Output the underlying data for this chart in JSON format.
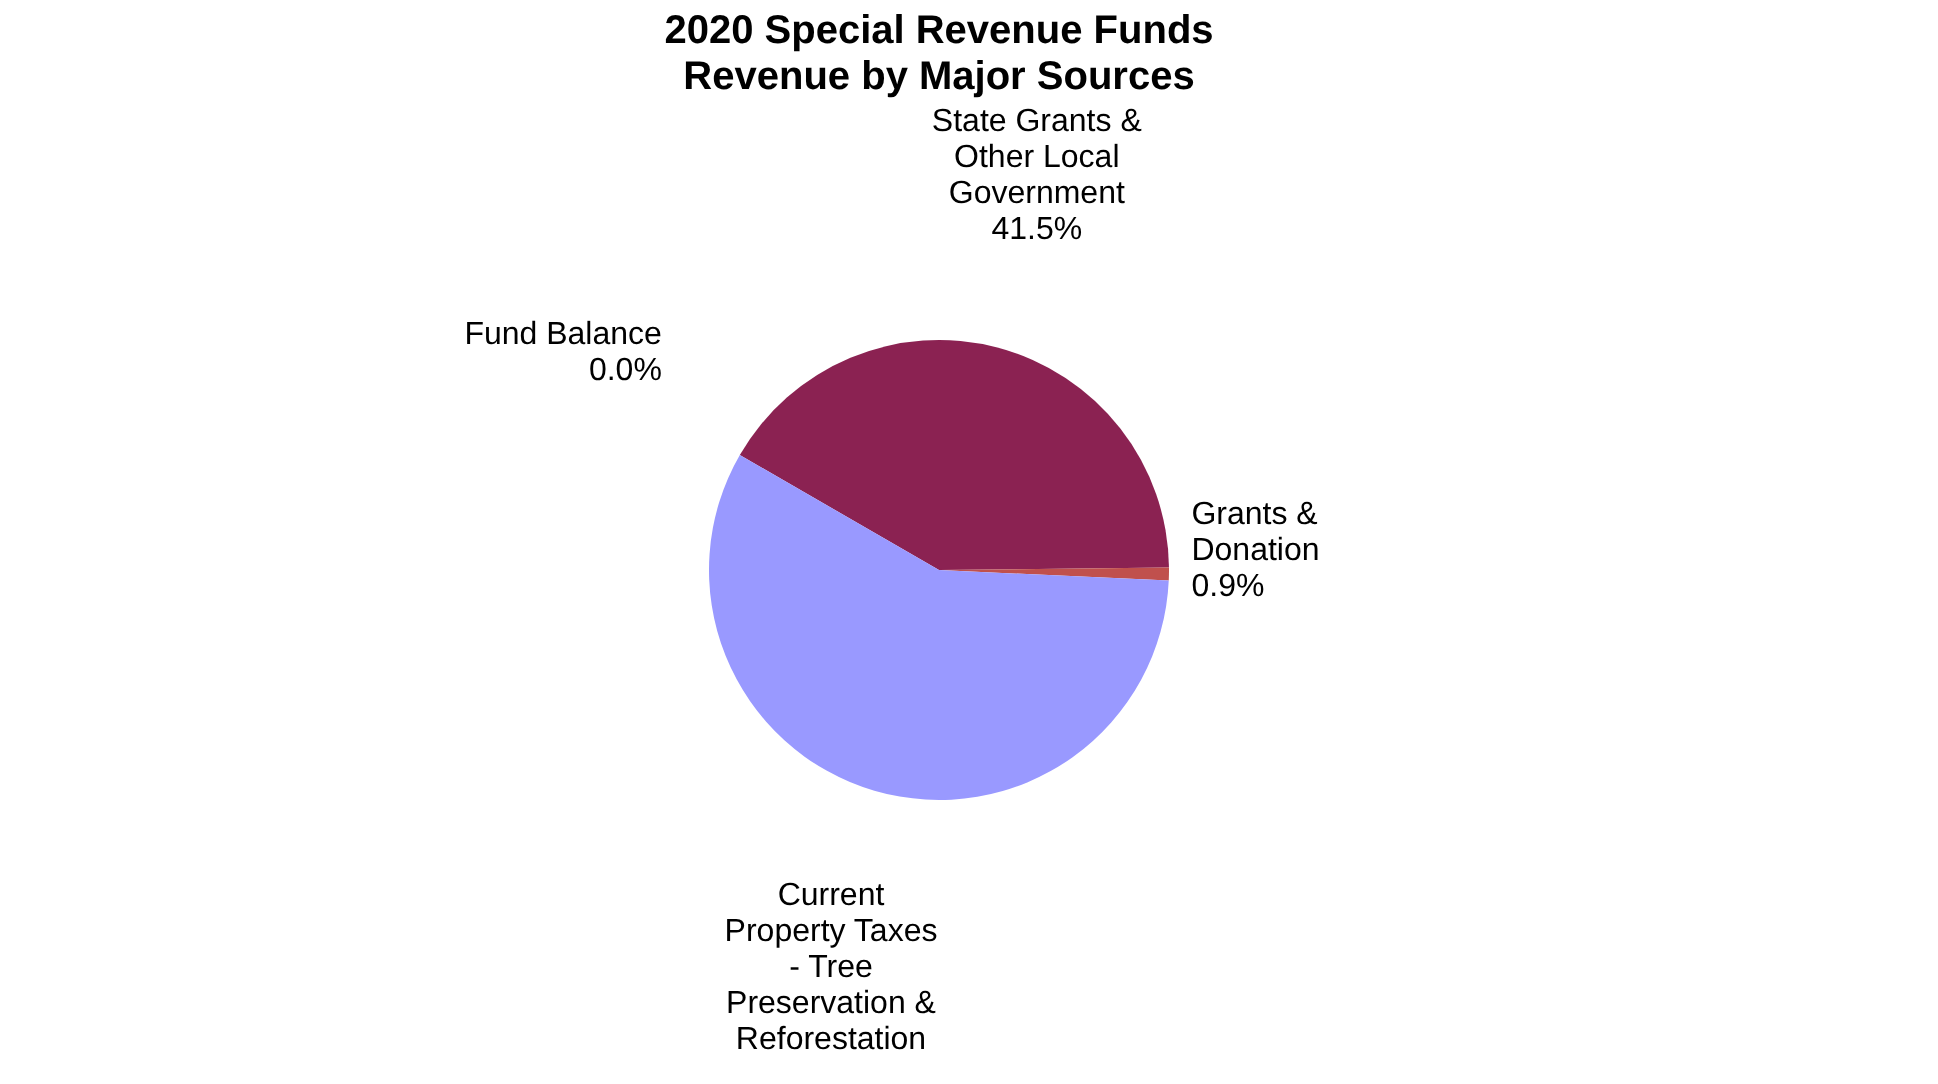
{
  "chart_data": {
    "type": "pie",
    "title": "2020 Special Revenue Funds",
    "subtitle": "Revenue by Major Sources",
    "categories": [
      "State Grants & Other Local Government",
      "Grants & Donation",
      "Current Property Taxes - Tree Preservation & Reforestation",
      "Fund Balance"
    ],
    "values": [
      41.5,
      0.9,
      57.6,
      0.0
    ],
    "colors": [
      "#8b2252",
      "#c0504d",
      "#9999ff",
      "#4f81bd"
    ],
    "value_labels": [
      "41.5%",
      "0.9%",
      null,
      "0.0%"
    ],
    "legend": false
  }
}
